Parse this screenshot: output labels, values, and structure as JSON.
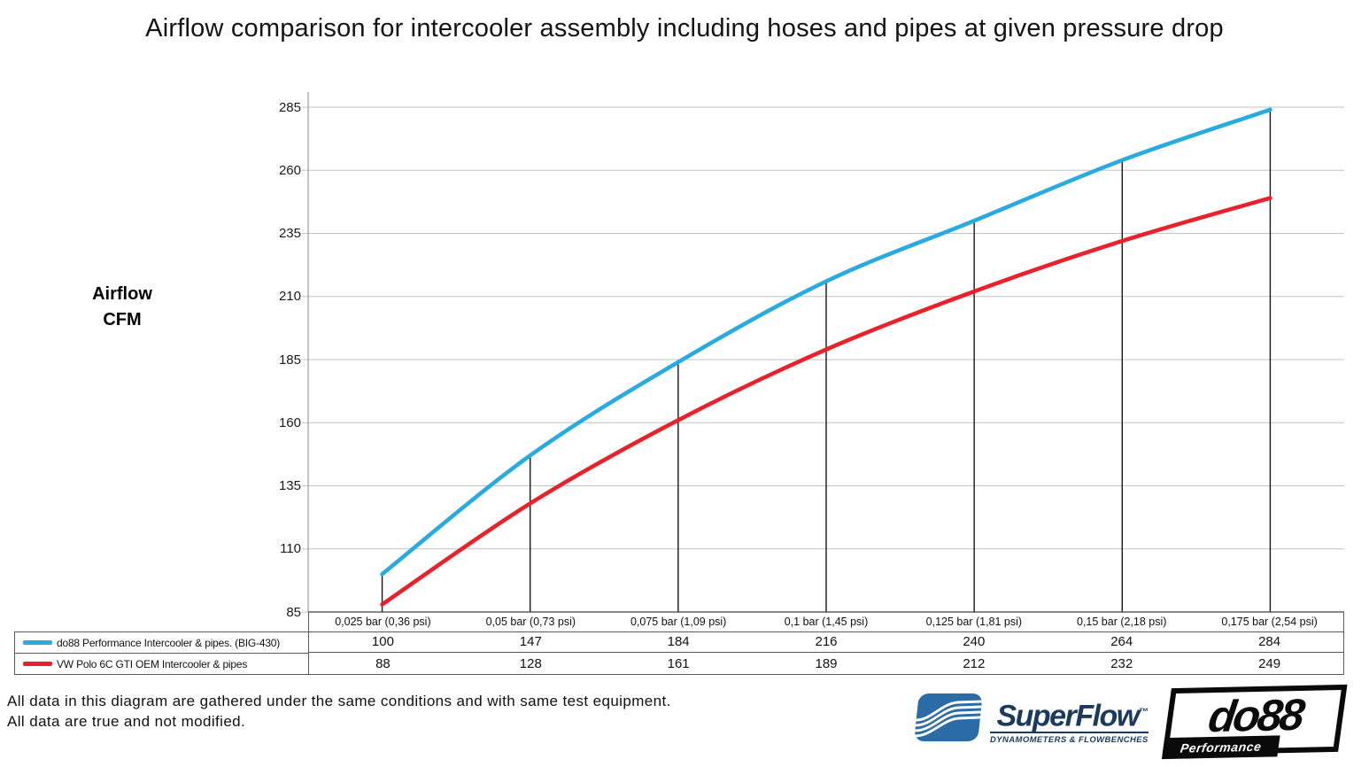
{
  "title": "Airflow comparison for intercooler assembly including hoses and pipes at given pressure drop",
  "y_axis_label": {
    "line1": "Airflow",
    "line2": "CFM"
  },
  "chart_data": {
    "type": "line",
    "title": "Airflow comparison for intercooler assembly including hoses and pipes at given pressure drop",
    "xlabel": "",
    "ylabel": "Airflow CFM",
    "categories": [
      "0,025 bar (0,36 psi)",
      "0,05 bar (0,73 psi)",
      "0,075 bar (1,09 psi)",
      "0,1 bar (1,45 psi)",
      "0,125 bar (1,81 psi)",
      "0,15 bar (2,18 psi)",
      "0,175 bar (2,54 psi)"
    ],
    "series": [
      {
        "name": "do88 Performance Intercooler & pipes. (BIG-430)",
        "color": "#29ABE2",
        "values": [
          100,
          147,
          184,
          216,
          240,
          264,
          284
        ]
      },
      {
        "name": "VW Polo 6C GTI OEM Intercooler & pipes",
        "color": "#E8212A",
        "values": [
          88,
          128,
          161,
          189,
          212,
          232,
          249
        ]
      }
    ],
    "y_ticks": [
      285,
      260,
      235,
      210,
      185,
      160,
      135,
      110,
      85
    ],
    "ylim": [
      85,
      285
    ],
    "grid": "horizontal",
    "legend_position": "bottom-left table",
    "drop_lines": "vertical black line from first series point to x-axis at each category"
  },
  "footer": {
    "line1": "All data in this diagram are gathered under the same conditions and with same test equipment.",
    "line2": "All data are true and not modified."
  },
  "logos": {
    "superflow": {
      "name": "SuperFlow",
      "trademark": "™",
      "tagline": "DYNAMOMETERS & FLOWBENCHES",
      "text_color": "#1B3A5C",
      "icon_color": "#2B6CA6"
    },
    "do88": {
      "name": "do88",
      "tagline": "Performance"
    }
  },
  "colors": {
    "background": "#FFFFFF",
    "gridline": "#C3C3C3",
    "y_axis": "#9B9B9B",
    "x_axis": "#404040",
    "drop_line": "#161616",
    "table_border": "#5A5A5A",
    "series_blue": "#29ABE2",
    "series_red": "#E8212A"
  }
}
